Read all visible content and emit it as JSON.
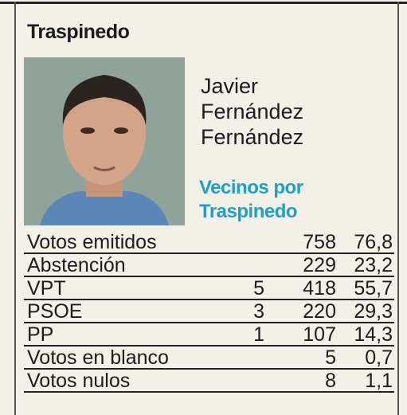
{
  "header": {
    "title": "Traspinedo"
  },
  "candidate": {
    "name_lines": [
      "Javier",
      "Fernández",
      "Fernández"
    ],
    "party_lines": [
      "Vecinos por",
      "Traspinedo"
    ]
  },
  "table": {
    "rows": [
      [
        "Votos emitidos",
        null,
        "758",
        "76,8"
      ],
      [
        "Abstención",
        null,
        "229",
        "23,2"
      ],
      [
        "VPT",
        "5",
        "418",
        "55,7"
      ],
      [
        "PSOE",
        "3",
        "220",
        "29,3"
      ],
      [
        "PP",
        "1",
        "107",
        "14,3"
      ],
      [
        "Votos en blanco",
        null,
        "5",
        "0,7"
      ],
      [
        "Votos nulos",
        null,
        "8",
        "1,1"
      ]
    ]
  }
}
